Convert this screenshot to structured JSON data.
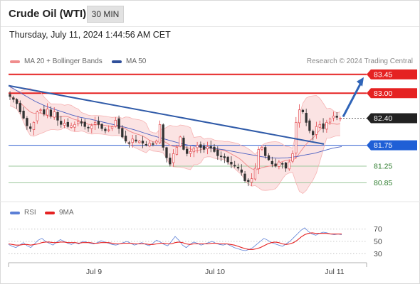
{
  "header": {
    "title": "Crude Oil (WTI)",
    "timeframe": "30 MIN",
    "datetime": "Thursday, July 11, 2024 1:44:56 AM CET"
  },
  "legend": {
    "ma20": "MA 20 + Bollinger Bands",
    "ma50": "MA 50",
    "credit": "Research © 2024 Trading Central",
    "rsi": "RSI",
    "rsi_ma": "9MA"
  },
  "colors": {
    "up": "#e2464c",
    "down": "#333333",
    "band_fill": "#fbe3e3",
    "ma20": "#f08c8c",
    "ma50": "#4a5fc1",
    "trend": "#2f5aa8",
    "resistance": "#e52222",
    "support_blue": "#3060d0",
    "support_green": "#3a9a3a",
    "rsi_line": "#5b7fd6",
    "rsi_ma": "#e52222"
  },
  "chart_data": [
    {
      "type": "candlestick",
      "title": "Crude Oil (WTI)",
      "x_ticks": [
        "Jul 9",
        "Jul 10",
        "Jul 11"
      ],
      "ylim": [
        80.5,
        83.6
      ],
      "levels": [
        {
          "value": 83.45,
          "label": "83.45",
          "style": "resistance"
        },
        {
          "value": 83.0,
          "label": "83.00",
          "style": "resistance"
        },
        {
          "value": 82.4,
          "label": "82.40",
          "style": "current"
        },
        {
          "value": 81.75,
          "label": "81.75",
          "style": "support_blue"
        },
        {
          "value": 81.25,
          "label": "81.25",
          "style": "support_green"
        },
        {
          "value": 80.85,
          "label": "80.85",
          "style": "support_green"
        }
      ],
      "close_path": [
        82.92,
        82.85,
        82.75,
        82.55,
        82.4,
        82.22,
        82.15,
        82.3,
        82.55,
        82.6,
        82.5,
        82.62,
        82.45,
        82.55,
        82.35,
        82.25,
        82.28,
        82.2,
        82.22,
        82.25,
        82.32,
        82.28,
        82.2,
        82.18,
        82.22,
        82.3,
        82.25,
        82.15,
        82.1,
        82.12,
        82.2,
        82.35,
        82.15,
        81.95,
        81.85,
        81.8,
        81.9,
        81.85,
        81.85,
        81.8,
        81.75,
        81.8,
        81.78,
        81.85,
        82.25,
        81.7,
        81.45,
        81.3,
        81.55,
        81.7,
        81.95,
        81.65,
        81.55,
        81.6,
        81.68,
        81.75,
        81.7,
        81.65,
        81.72,
        81.68,
        81.6,
        81.5,
        81.48,
        81.45,
        81.35,
        81.3,
        81.25,
        81.2,
        81.1,
        80.9,
        80.88,
        80.95,
        81.2,
        81.65,
        81.7,
        81.5,
        81.4,
        81.3,
        81.25,
        81.35,
        81.3,
        81.2,
        81.35,
        81.55,
        82.3,
        82.6,
        82.55,
        82.3,
        82.1,
        82.0,
        82.2,
        82.25,
        82.15,
        82.3,
        82.38,
        82.45,
        82.42,
        82.4
      ],
      "ma50_path": [
        83.18,
        83.05,
        82.92,
        82.8,
        82.7,
        82.62,
        82.55,
        82.48,
        82.42,
        82.38,
        82.33,
        82.28,
        82.23,
        82.18,
        82.12,
        82.05,
        81.98,
        81.92,
        81.86,
        81.8,
        81.75,
        81.72,
        81.7,
        81.67,
        81.64,
        81.6,
        81.56,
        81.52,
        81.48,
        81.45,
        81.44,
        81.45,
        81.48,
        81.52,
        81.56,
        81.62,
        81.68,
        81.72
      ],
      "trendline": {
        "from": 83.18,
        "to": 81.78
      },
      "projection": {
        "from": 82.4,
        "to": 83.45
      }
    },
    {
      "type": "line",
      "title": "RSI",
      "series": [
        {
          "name": "RSI",
          "values": [
            45,
            42,
            40,
            44,
            48,
            43,
            40,
            46,
            52,
            55,
            50,
            47,
            44,
            49,
            53,
            50,
            47,
            45,
            48,
            46,
            50,
            49,
            47,
            46,
            48,
            51,
            49,
            47,
            45,
            44,
            46,
            48,
            50,
            47,
            44,
            46,
            48,
            45,
            43,
            47,
            52,
            49,
            45,
            43,
            50,
            58,
            52,
            44,
            40,
            45,
            49,
            47,
            44,
            46,
            48,
            50,
            47,
            45,
            44,
            46,
            43,
            40,
            38,
            36,
            35,
            37,
            40,
            45,
            50,
            55,
            52,
            48,
            46,
            44,
            42,
            46,
            50,
            56,
            62,
            68,
            72,
            66,
            62,
            60,
            63,
            65,
            64,
            62,
            61,
            62,
            61
          ]
        },
        {
          "name": "9MA",
          "values": [
            46,
            45,
            44,
            44,
            45,
            45,
            44,
            45,
            46,
            48,
            49,
            49,
            48,
            48,
            49,
            49,
            48,
            48,
            48,
            47,
            48,
            48,
            48,
            47,
            47,
            48,
            48,
            48,
            47,
            46,
            46,
            47,
            47,
            47,
            46,
            46,
            46,
            46,
            45,
            45,
            46,
            47,
            47,
            46,
            46,
            48,
            49,
            48,
            46,
            45,
            46,
            46,
            46,
            46,
            46,
            47,
            47,
            46,
            46,
            46,
            45,
            44,
            42,
            40,
            38,
            37,
            37,
            38,
            40,
            43,
            46,
            48,
            49,
            48,
            46,
            45,
            46,
            48,
            52,
            57,
            61,
            63,
            64,
            63,
            63,
            63,
            63,
            62,
            62,
            62,
            62
          ]
        }
      ],
      "ylim": [
        20,
        80
      ],
      "y_ticks": [
        70,
        50,
        30
      ]
    }
  ]
}
